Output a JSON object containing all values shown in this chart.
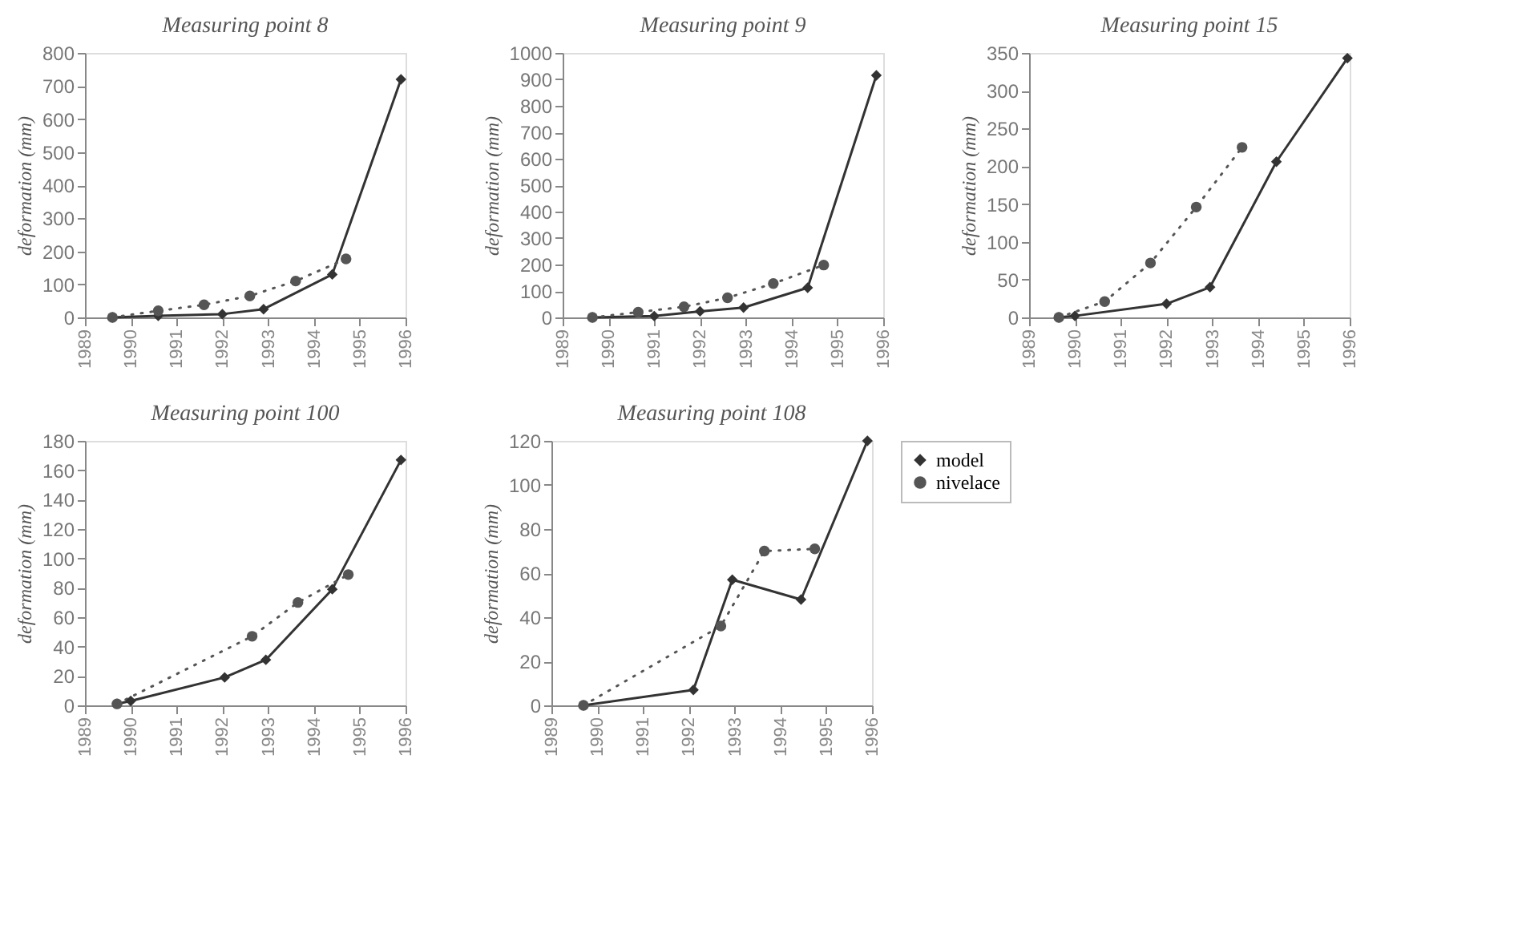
{
  "chart_data": [
    {
      "type": "line",
      "title": "Measuring point 8",
      "ylabel": "deformation (mm)",
      "xlim": [
        1989,
        1996
      ],
      "xticks": [
        1989,
        1990,
        1991,
        1992,
        1993,
        1994,
        1995,
        1996
      ],
      "ylim": [
        0,
        800
      ],
      "yticks": [
        0,
        100,
        200,
        300,
        400,
        500,
        600,
        700,
        800
      ],
      "grid": false,
      "legend": false,
      "series": [
        {
          "color": "#333333",
          "marker": "diamond",
          "line_style": "solid",
          "x": [
            1989.6,
            1990.6,
            1992.0,
            1992.9,
            1994.4,
            1995.9
          ],
          "values": [
            0,
            5,
            10,
            25,
            130,
            720
          ]
        },
        {
          "color": "#555555",
          "marker": "circle",
          "line_style": "dotted",
          "x": [
            1989.6,
            1990.6,
            1991.6,
            1992.6,
            1993.6,
            1994.7
          ],
          "values": [
            0,
            20,
            38,
            65,
            110,
            177
          ]
        }
      ]
    },
    {
      "type": "line",
      "title": "Measuring point 9",
      "ylabel": "deformation (mm)",
      "xlim": [
        1989,
        1996
      ],
      "xticks": [
        1989,
        1990,
        1991,
        1992,
        1993,
        1994,
        1995,
        1996
      ],
      "ylim": [
        0,
        1000
      ],
      "yticks": [
        0,
        100,
        200,
        300,
        400,
        500,
        600,
        700,
        800,
        900,
        1000
      ],
      "grid": false,
      "legend": false,
      "series": [
        {
          "color": "#333333",
          "marker": "diamond",
          "line_style": "solid",
          "x": [
            1989.65,
            1991.0,
            1992.0,
            1992.95,
            1994.35,
            1995.85
          ],
          "values": [
            0,
            5,
            23,
            37,
            112,
            915
          ]
        },
        {
          "color": "#555555",
          "marker": "circle",
          "line_style": "dotted",
          "x": [
            1989.65,
            1990.65,
            1991.65,
            1992.6,
            1993.6,
            1994.7
          ],
          "values": [
            0,
            20,
            40,
            74,
            128,
            198
          ]
        }
      ]
    },
    {
      "type": "line",
      "title": "Measuring point 15",
      "ylabel": "deformation (mm)",
      "xlim": [
        1989,
        1996
      ],
      "xticks": [
        1989,
        1990,
        1991,
        1992,
        1993,
        1994,
        1995,
        1996
      ],
      "ylim": [
        0,
        350
      ],
      "yticks": [
        0,
        50,
        100,
        150,
        200,
        250,
        300,
        350
      ],
      "grid": false,
      "legend": false,
      "series": [
        {
          "color": "#333333",
          "marker": "diamond",
          "line_style": "solid",
          "x": [
            1989.65,
            1990.0,
            1992.0,
            1992.95,
            1994.4,
            1995.95
          ],
          "values": [
            0,
            2,
            18,
            40,
            206,
            343
          ]
        },
        {
          "color": "#555555",
          "marker": "circle",
          "line_style": "dotted",
          "x": [
            1989.65,
            1990.65,
            1991.65,
            1992.65,
            1993.65
          ],
          "values": [
            0,
            21,
            72,
            146,
            225
          ]
        }
      ]
    },
    {
      "type": "line",
      "title": "Measuring point 100",
      "ylabel": "deformation (mm)",
      "xlim": [
        1989,
        1996
      ],
      "xticks": [
        1989,
        1990,
        1991,
        1992,
        1993,
        1994,
        1995,
        1996
      ],
      "ylim": [
        0,
        180
      ],
      "yticks": [
        0,
        20,
        40,
        60,
        80,
        100,
        120,
        140,
        160,
        180
      ],
      "grid": false,
      "legend": false,
      "series": [
        {
          "color": "#333333",
          "marker": "diamond",
          "line_style": "solid",
          "x": [
            1989.7,
            1990.0,
            1992.05,
            1992.95,
            1994.4,
            1995.9
          ],
          "values": [
            1,
            3,
            19,
            31,
            79,
            167
          ]
        },
        {
          "color": "#555555",
          "marker": "circle",
          "line_style": "dotted",
          "x": [
            1989.7,
            1992.65,
            1993.65,
            1994.75
          ],
          "values": [
            1,
            47,
            70,
            89
          ]
        }
      ]
    },
    {
      "type": "line",
      "title": "Measuring point 108",
      "ylabel": "deformation (mm)",
      "xlim": [
        1989,
        1996
      ],
      "xticks": [
        1989,
        1990,
        1991,
        1992,
        1993,
        1994,
        1995,
        1996
      ],
      "ylim": [
        0,
        120
      ],
      "yticks": [
        0,
        20,
        40,
        60,
        80,
        100,
        120
      ],
      "grid": false,
      "legend": "right",
      "series": [
        {
          "name": "model",
          "color": "#333333",
          "marker": "diamond",
          "line_style": "solid",
          "x": [
            1989.7,
            1992.1,
            1992.95,
            1994.45,
            1995.9
          ],
          "values": [
            0,
            7,
            57,
            48,
            120
          ]
        },
        {
          "name": "nivelace",
          "color": "#555555",
          "marker": "circle",
          "line_style": "dotted",
          "x": [
            1989.7,
            1992.7,
            1993.65,
            1994.75
          ],
          "values": [
            0,
            36,
            70,
            71
          ]
        }
      ]
    }
  ]
}
